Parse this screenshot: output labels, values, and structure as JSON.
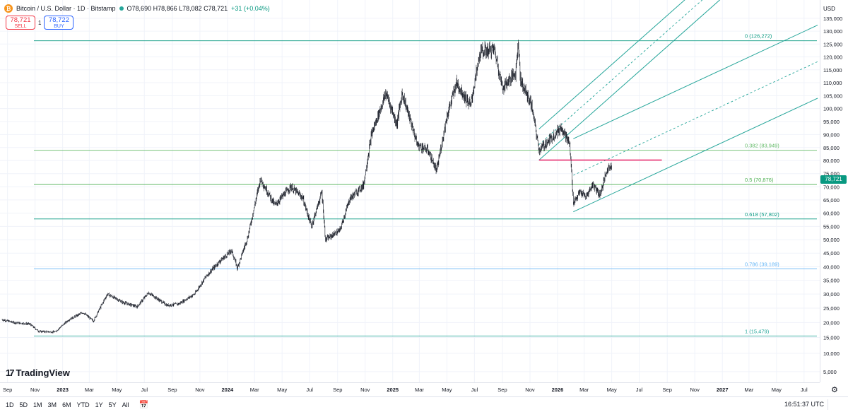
{
  "header": {
    "title": "Bitcoin / U.S. Dollar · 1D · Bitstamp",
    "ohlc_label": "O78,690 H78,866 L78,082 C78,721",
    "change": "+31 (+0.04%)",
    "sell_price": "78,721",
    "sell_label": "SELL",
    "spread": "1",
    "buy_price": "78,722",
    "buy_label": "BUY"
  },
  "branding": {
    "logo_text": "TradingView"
  },
  "price_axis": {
    "currency": "USD",
    "current_price": "78,721",
    "current_price_color": "#089981"
  },
  "colors": {
    "fib_green": "#26a69a",
    "fib_teal": "#089981",
    "fib_blue": "#2196f3",
    "fib_line_green": "#66bb6a",
    "hline_red": "#e91e63",
    "candle": "#131722"
  },
  "bottom_bar": {
    "timeframes": [
      "1D",
      "5D",
      "1M",
      "3M",
      "6M",
      "YTD",
      "1Y",
      "5Y",
      "All"
    ],
    "calendar_icon": "calendar-range-icon",
    "clock": "16:51:37 UTC"
  },
  "chart_data": {
    "type": "candlestick",
    "x_axis_labels": [
      "Sep",
      "Nov",
      "2023",
      "Mar",
      "May",
      "Jul",
      "Sep",
      "Nov",
      "2024",
      "Mar",
      "May",
      "Jul",
      "Sep",
      "Nov",
      "2025",
      "Mar",
      "May",
      "Jul",
      "Sep",
      "Nov",
      "2026",
      "Mar",
      "May",
      "Jul",
      "Sep",
      "Nov",
      "2027",
      "Mar",
      "May",
      "Jul"
    ],
    "x_axis_dates": [
      "2022-09-01",
      "2022-11-01",
      "2023-01-01",
      "2023-03-01",
      "2023-05-01",
      "2023-07-01",
      "2023-09-01",
      "2023-11-01",
      "2024-01-01",
      "2024-03-01",
      "2024-05-01",
      "2024-07-01",
      "2024-09-01",
      "2024-11-01",
      "2025-01-01",
      "2025-03-01",
      "2025-05-01",
      "2025-07-01",
      "2025-09-01",
      "2025-11-01",
      "2026-01-01",
      "2026-03-01",
      "2026-05-01",
      "2026-07-01",
      "2026-09-01",
      "2026-11-01",
      "2027-01-01",
      "2027-03-01",
      "2027-05-01",
      "2027-07-01"
    ],
    "y_axis_ticks": [
      5000,
      10000,
      15000,
      20000,
      25000,
      30000,
      35000,
      40000,
      45000,
      50000,
      55000,
      60000,
      65000,
      70000,
      75000,
      80000,
      85000,
      90000,
      95000,
      100000,
      105000,
      110000,
      115000,
      120000,
      125000,
      130000,
      135000
    ],
    "y_axis_tick_labels": [
      "5,000",
      "10,000",
      "15,000",
      "20,000",
      "25,000",
      "30,000",
      "35,000",
      "40,000",
      "45,000",
      "50,000",
      "55,000",
      "60,000",
      "65,000",
      "70,000",
      "75,000",
      "80,000",
      "85,000",
      "90,000",
      "95,000",
      "100,000",
      "105,000",
      "110,000",
      "115,000",
      "120,000",
      "125,000",
      "130,000",
      "135,000"
    ],
    "y_scale": "log",
    "date_range": [
      "2022-08-20",
      "2027-07-31"
    ],
    "series": [
      {
        "points": [
          [
            "2022-08-20",
            21000
          ],
          [
            "2022-09-15",
            20000
          ],
          [
            "2022-10-20",
            19500
          ],
          [
            "2022-11-09",
            17000
          ],
          [
            "2022-12-15",
            16800
          ],
          [
            "2023-01-15",
            21000
          ],
          [
            "2023-02-15",
            23500
          ],
          [
            "2023-03-10",
            20500
          ],
          [
            "2023-04-10",
            30000
          ],
          [
            "2023-05-15",
            27000
          ],
          [
            "2023-06-15",
            25500
          ],
          [
            "2023-07-10",
            30500
          ],
          [
            "2023-08-20",
            26000
          ],
          [
            "2023-09-15",
            26500
          ],
          [
            "2023-10-20",
            30000
          ],
          [
            "2023-11-15",
            36500
          ],
          [
            "2023-12-15",
            42000
          ],
          [
            "2024-01-10",
            46000
          ],
          [
            "2024-01-23",
            39500
          ],
          [
            "2024-02-15",
            51000
          ],
          [
            "2024-03-14",
            73000
          ],
          [
            "2024-04-15",
            63000
          ],
          [
            "2024-05-20",
            70000
          ],
          [
            "2024-06-15",
            66000
          ],
          [
            "2024-07-05",
            55000
          ],
          [
            "2024-07-28",
            68000
          ],
          [
            "2024-08-05",
            50000
          ],
          [
            "2024-09-06",
            53500
          ],
          [
            "2024-09-28",
            65500
          ],
          [
            "2024-10-28",
            70500
          ],
          [
            "2024-11-15",
            90000
          ],
          [
            "2024-12-17",
            106000
          ],
          [
            "2025-01-10",
            94000
          ],
          [
            "2025-01-22",
            106000
          ],
          [
            "2025-02-25",
            86000
          ],
          [
            "2025-03-20",
            84000
          ],
          [
            "2025-04-08",
            76000
          ],
          [
            "2025-05-01",
            97000
          ],
          [
            "2025-05-22",
            110000
          ],
          [
            "2025-06-22",
            101000
          ],
          [
            "2025-07-14",
            122000
          ],
          [
            "2025-08-14",
            123000
          ],
          [
            "2025-09-01",
            108000
          ],
          [
            "2025-09-30",
            114000
          ],
          [
            "2025-10-06",
            126000
          ],
          [
            "2025-10-11",
            111000
          ],
          [
            "2025-11-05",
            101000
          ],
          [
            "2025-11-21",
            84000
          ],
          [
            "2025-12-15",
            88000
          ],
          [
            "2026-01-10",
            93000
          ],
          [
            "2026-01-28",
            86000
          ],
          [
            "2026-02-05",
            64000
          ],
          [
            "2026-02-20",
            68000
          ],
          [
            "2026-03-05",
            66000
          ],
          [
            "2026-03-20",
            71000
          ],
          [
            "2026-04-05",
            67000
          ],
          [
            "2026-04-20",
            76000
          ],
          [
            "2026-05-01",
            78721
          ]
        ]
      }
    ],
    "fib_retracement": {
      "start_date": "2022-09-01",
      "end_date": "2027-07-31",
      "levels": [
        {
          "ratio": 0,
          "price": 126272,
          "label": "0 (126,272)",
          "color": "#089981"
        },
        {
          "ratio": 0.382,
          "price": 83949,
          "label": "0.382 (83,949)",
          "color": "#66bb6a"
        },
        {
          "ratio": 0.5,
          "price": 70876,
          "label": "0.5 (70,876)",
          "color": "#4caf50"
        },
        {
          "ratio": 0.618,
          "price": 57802,
          "label": "0.618 (57,802)",
          "color": "#089981"
        },
        {
          "ratio": 0.786,
          "price": 39189,
          "label": "0.786 (39,189)",
          "color": "#64b5f6"
        },
        {
          "ratio": 1,
          "price": 15479,
          "label": "1 (15,479)",
          "color": "#26a69a"
        }
      ]
    },
    "horizontal_line": {
      "price": 80200,
      "start_date": "2025-11-21",
      "end_date": "2026-08-20",
      "color": "#e91e63"
    },
    "parallel_channels": [
      {
        "p1": [
          "2025-11-21",
          80200
        ],
        "p2": [
          "2027-07-31",
          176000
        ],
        "offset_upper": 0.085,
        "color": "#26a69a"
      },
      {
        "p1": [
          "2026-02-05",
          60500
        ],
        "p2": [
          "2027-07-31",
          104000
        ],
        "offset_upper": 0.2,
        "color": "#26a69a"
      }
    ]
  }
}
